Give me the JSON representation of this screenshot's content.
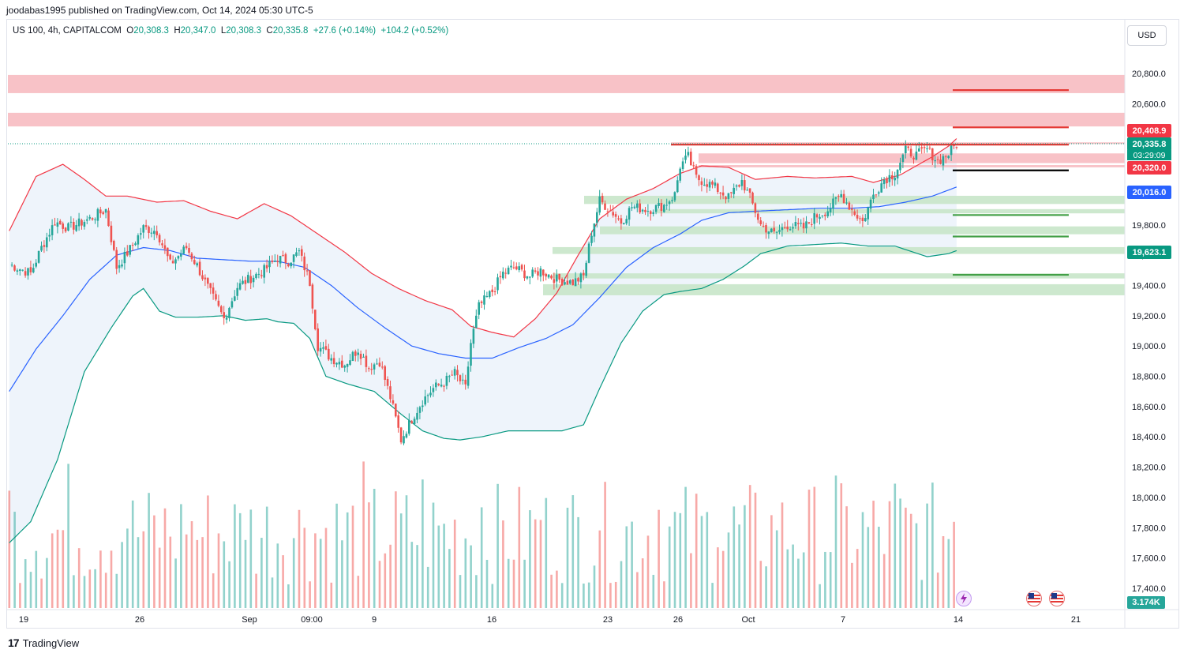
{
  "header": {
    "published": "joodabas1995 published on TradingView.com, Oct 14, 2024 05:30 UTC-5",
    "symbol": "US 100, 4h, CAPITALCOM",
    "open_label": "O",
    "open": "20,308.3",
    "high_label": "H",
    "high": "20,347.0",
    "low_label": "L",
    "low": "20,308.3",
    "close_label": "C",
    "close": "20,335.8",
    "change": "+27.6 (+0.14%)",
    "change2": "+104.2 (+0.52%)"
  },
  "currency_button": "USD",
  "price_tags": {
    "upper": "20,408.9",
    "last": "20,335.8",
    "countdown": "03:29:09",
    "level": "20,320.0",
    "middle": "20,016.0",
    "lower": "19,623.1",
    "volume": "3.174K"
  },
  "colors": {
    "up": "#26a69a",
    "down": "#ef5350",
    "upper_band": "#f23645",
    "middle_band": "#2962ff",
    "lower_band": "#089981",
    "resistance_zone": "#f7b7bd",
    "support_zone": "#c8e6c9",
    "band_fill": "#eef4fb"
  },
  "branding": "TradingView",
  "icons": [
    "tradingview-logo-icon",
    "lightning-event-icon",
    "us-flag-event-icon"
  ],
  "chart_data": {
    "type": "candlestick",
    "symbol": "US 100",
    "timeframe": "4h",
    "ylim": [
      17300,
      20880
    ],
    "y_ticks": [
      17400,
      17600,
      17800,
      18000,
      18200,
      18400,
      18600,
      18800,
      19000,
      19200,
      19400,
      19600,
      19800,
      20000,
      20200,
      20400,
      20600,
      20800
    ],
    "x_ticks": [
      "19",
      "26",
      "Sep",
      "09:00",
      "9",
      "16",
      "23",
      "26",
      "Oct",
      "7",
      "14",
      "21"
    ],
    "close_path_waypoints": [
      [
        0,
        19540
      ],
      [
        8,
        19480
      ],
      [
        12,
        19650
      ],
      [
        17,
        19820
      ],
      [
        22,
        19780
      ],
      [
        30,
        19840
      ],
      [
        36,
        19900
      ],
      [
        40,
        19520
      ],
      [
        45,
        19640
      ],
      [
        50,
        19780
      ],
      [
        55,
        19760
      ],
      [
        60,
        19540
      ],
      [
        66,
        19650
      ],
      [
        70,
        19530
      ],
      [
        75,
        19350
      ],
      [
        80,
        19180
      ],
      [
        85,
        19390
      ],
      [
        90,
        19450
      ],
      [
        95,
        19500
      ],
      [
        100,
        19580
      ],
      [
        104,
        19560
      ],
      [
        108,
        19620
      ],
      [
        112,
        19420
      ],
      [
        115,
        19000
      ],
      [
        120,
        18920
      ],
      [
        125,
        18880
      ],
      [
        130,
        18980
      ],
      [
        134,
        18860
      ],
      [
        138,
        18900
      ],
      [
        142,
        18660
      ],
      [
        146,
        18380
      ],
      [
        150,
        18520
      ],
      [
        154,
        18640
      ],
      [
        158,
        18720
      ],
      [
        162,
        18760
      ],
      [
        166,
        18820
      ],
      [
        170,
        18720
      ],
      [
        172,
        19020
      ],
      [
        175,
        19260
      ],
      [
        180,
        19360
      ],
      [
        184,
        19480
      ],
      [
        188,
        19520
      ],
      [
        194,
        19460
      ],
      [
        198,
        19500
      ],
      [
        204,
        19440
      ],
      [
        210,
        19420
      ],
      [
        214,
        19460
      ],
      [
        217,
        19750
      ],
      [
        220,
        19960
      ],
      [
        225,
        19880
      ],
      [
        228,
        19820
      ],
      [
        232,
        19920
      ],
      [
        238,
        19900
      ],
      [
        244,
        19930
      ],
      [
        248,
        20000
      ],
      [
        250,
        20190
      ],
      [
        253,
        20250
      ],
      [
        256,
        20110
      ],
      [
        262,
        20060
      ],
      [
        268,
        19980
      ],
      [
        273,
        20090
      ],
      [
        276,
        19980
      ],
      [
        280,
        19800
      ],
      [
        285,
        19740
      ],
      [
        290,
        19800
      ],
      [
        296,
        19780
      ],
      [
        300,
        19850
      ],
      [
        305,
        19900
      ],
      [
        310,
        20000
      ],
      [
        314,
        19900
      ],
      [
        318,
        19820
      ],
      [
        322,
        20000
      ],
      [
        326,
        20100
      ],
      [
        330,
        20140
      ],
      [
        334,
        20290
      ],
      [
        338,
        20260
      ],
      [
        342,
        20300
      ],
      [
        346,
        20220
      ],
      [
        350,
        20270
      ],
      [
        353,
        20336
      ]
    ],
    "bollinger_bands": {
      "upper_waypoints": [
        [
          0,
          19760
        ],
        [
          10,
          20120
        ],
        [
          20,
          20200
        ],
        [
          28,
          20100
        ],
        [
          36,
          19990
        ],
        [
          44,
          19990
        ],
        [
          55,
          19950
        ],
        [
          65,
          19960
        ],
        [
          75,
          19890
        ],
        [
          85,
          19840
        ],
        [
          95,
          19940
        ],
        [
          105,
          19860
        ],
        [
          115,
          19740
        ],
        [
          125,
          19620
        ],
        [
          135,
          19480
        ],
        [
          145,
          19380
        ],
        [
          155,
          19300
        ],
        [
          165,
          19240
        ],
        [
          172,
          19130
        ],
        [
          180,
          19090
        ],
        [
          188,
          19060
        ],
        [
          196,
          19180
        ],
        [
          204,
          19350
        ],
        [
          212,
          19600
        ],
        [
          220,
          19840
        ],
        [
          230,
          19970
        ],
        [
          240,
          20040
        ],
        [
          250,
          20140
        ],
        [
          258,
          20190
        ],
        [
          268,
          20180
        ],
        [
          278,
          20100
        ],
        [
          290,
          20120
        ],
        [
          300,
          20110
        ],
        [
          314,
          20120
        ],
        [
          322,
          20080
        ],
        [
          332,
          20130
        ],
        [
          344,
          20250
        ],
        [
          350,
          20320
        ],
        [
          353,
          20370
        ]
      ],
      "middle_waypoints": [
        [
          0,
          18700
        ],
        [
          10,
          18980
        ],
        [
          20,
          19200
        ],
        [
          30,
          19440
        ],
        [
          40,
          19600
        ],
        [
          50,
          19650
        ],
        [
          60,
          19630
        ],
        [
          70,
          19580
        ],
        [
          80,
          19570
        ],
        [
          90,
          19560
        ],
        [
          100,
          19560
        ],
        [
          110,
          19520
        ],
        [
          120,
          19400
        ],
        [
          130,
          19250
        ],
        [
          140,
          19120
        ],
        [
          150,
          19000
        ],
        [
          160,
          18950
        ],
        [
          170,
          18920
        ],
        [
          180,
          18920
        ],
        [
          190,
          18990
        ],
        [
          200,
          19050
        ],
        [
          210,
          19140
        ],
        [
          220,
          19320
        ],
        [
          230,
          19520
        ],
        [
          240,
          19650
        ],
        [
          250,
          19740
        ],
        [
          258,
          19830
        ],
        [
          268,
          19880
        ],
        [
          278,
          19890
        ],
        [
          290,
          19900
        ],
        [
          302,
          19910
        ],
        [
          314,
          19910
        ],
        [
          324,
          19920
        ],
        [
          334,
          19950
        ],
        [
          344,
          19990
        ],
        [
          353,
          20050
        ]
      ],
      "lower_waypoints": [
        [
          0,
          17700
        ],
        [
          8,
          17840
        ],
        [
          18,
          18250
        ],
        [
          28,
          18830
        ],
        [
          38,
          19120
        ],
        [
          46,
          19330
        ],
        [
          50,
          19380
        ],
        [
          56,
          19230
        ],
        [
          62,
          19190
        ],
        [
          70,
          19190
        ],
        [
          80,
          19200
        ],
        [
          88,
          19170
        ],
        [
          96,
          19180
        ],
        [
          100,
          19160
        ],
        [
          106,
          19150
        ],
        [
          112,
          19050
        ],
        [
          118,
          18800
        ],
        [
          126,
          18750
        ],
        [
          136,
          18700
        ],
        [
          146,
          18550
        ],
        [
          154,
          18440
        ],
        [
          162,
          18390
        ],
        [
          168,
          18380
        ],
        [
          176,
          18400
        ],
        [
          186,
          18440
        ],
        [
          194,
          18440
        ],
        [
          206,
          18440
        ],
        [
          214,
          18480
        ],
        [
          220,
          18720
        ],
        [
          228,
          19020
        ],
        [
          236,
          19230
        ],
        [
          244,
          19340
        ],
        [
          250,
          19360
        ],
        [
          258,
          19380
        ],
        [
          266,
          19440
        ],
        [
          274,
          19530
        ],
        [
          280,
          19610
        ],
        [
          290,
          19660
        ],
        [
          300,
          19670
        ],
        [
          310,
          19680
        ],
        [
          320,
          19660
        ],
        [
          330,
          19660
        ],
        [
          342,
          19590
        ],
        [
          350,
          19610
        ],
        [
          353,
          19630
        ]
      ]
    },
    "zones": {
      "resistance": [
        [
          20670,
          20790
        ],
        [
          20450,
          20540
        ],
        [
          20335,
          20345
        ],
        [
          20208,
          20272
        ],
        [
          20180,
          20195
        ]
      ],
      "support": [
        [
          19938,
          19992
        ],
        [
          19876,
          19904
        ],
        [
          19738,
          19790
        ],
        [
          19608,
          19653
        ],
        [
          19446,
          19480
        ],
        [
          19335,
          19408
        ]
      ]
    },
    "horizontal_levels": [
      {
        "price": 20690,
        "color": "red"
      },
      {
        "price": 20444,
        "color": "red"
      },
      {
        "price": 20330,
        "color": "red"
      },
      {
        "price": 20160,
        "color": "black"
      },
      {
        "price": 19865,
        "color": "green"
      },
      {
        "price": 19723,
        "color": "green"
      },
      {
        "price": 19470,
        "color": "green"
      }
    ],
    "price_tags": [
      20408.9,
      20335.8,
      20320.0,
      20016.0,
      19623.1
    ],
    "volume_last": "3.174K"
  }
}
